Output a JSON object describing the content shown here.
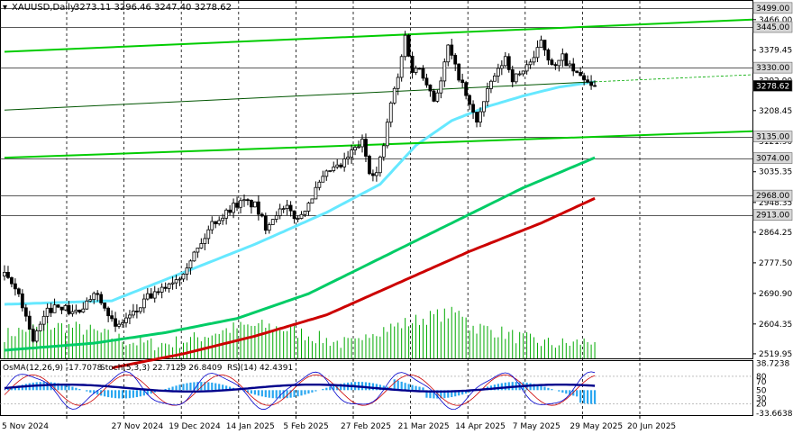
{
  "header": {
    "symbol": "XAUUSD,Daily",
    "ohlc": "3273.11 3296.46 3247.40 3278.62",
    "arrow_icon": "triangle-down-icon"
  },
  "colors": {
    "ema200": "#cc0000",
    "ema144": "#00cc66",
    "ema50": "#66e8ff",
    "channel": "#00cc00",
    "volume": "#00aa00",
    "osma": "#2aa7f0",
    "stoch_main": "#0000cc",
    "stoch_signal": "#cc0000",
    "rsi": "#00008b",
    "price_marker": "#000000"
  },
  "chart_data": {
    "type": "candlestick",
    "price_axis": {
      "ticks": [
        "3466.00",
        "3379.45",
        "3292.90",
        "3208.45",
        "3121.90",
        "3035.35",
        "2948.35",
        "2864.25",
        "2777.50",
        "2690.90",
        "2604.35",
        "2519.95"
      ],
      "ylim": [
        2507,
        3519
      ]
    },
    "level_labels": [
      {
        "value": 3499.0,
        "label": "3499.00"
      },
      {
        "value": 3445.0,
        "label": "3445.00"
      },
      {
        "value": 3330.0,
        "label": "3330.00"
      },
      {
        "value": 3278.62,
        "label": "3278.62",
        "current": true
      },
      {
        "value": 3135.0,
        "label": "3135.00"
      },
      {
        "value": 3074.0,
        "label": "3074.00"
      },
      {
        "value": 2968.0,
        "label": "2968.00"
      },
      {
        "value": 2913.0,
        "label": "2913.00"
      }
    ],
    "date_axis": [
      {
        "label": "5 Nov 2024",
        "index": 0
      },
      {
        "label": "27 Nov 2024",
        "index": 16
      },
      {
        "label": "19 Dec 2024",
        "index": 32
      },
      {
        "label": "14 Jan 2025",
        "index": 48
      },
      {
        "label": "5 Feb 2025",
        "index": 64
      },
      {
        "label": "27 Feb 2025",
        "index": 80
      },
      {
        "label": "21 Mar 2025",
        "index": 96
      },
      {
        "label": "14 Apr 2025",
        "index": 112
      },
      {
        "label": "7 May 2025",
        "index": 128
      },
      {
        "label": "29 May 2025",
        "index": 144
      },
      {
        "label": "20 Jun 2025",
        "index": 160
      }
    ],
    "bars": 166,
    "close_anchors": [
      [
        0,
        2740
      ],
      [
        4,
        2690
      ],
      [
        8,
        2560
      ],
      [
        12,
        2640
      ],
      [
        15,
        2660
      ],
      [
        18,
        2640
      ],
      [
        22,
        2640
      ],
      [
        25,
        2700
      ],
      [
        28,
        2660
      ],
      [
        31,
        2590
      ],
      [
        34,
        2620
      ],
      [
        37,
        2640
      ],
      [
        40,
        2680
      ],
      [
        43,
        2690
      ],
      [
        46,
        2720
      ],
      [
        49,
        2740
      ],
      [
        52,
        2790
      ],
      [
        55,
        2830
      ],
      [
        58,
        2890
      ],
      [
        61,
        2910
      ],
      [
        64,
        2940
      ],
      [
        67,
        2950
      ],
      [
        70,
        2940
      ],
      [
        73,
        2880
      ],
      [
        76,
        2920
      ],
      [
        79,
        2930
      ],
      [
        82,
        2900
      ],
      [
        85,
        2950
      ],
      [
        88,
        3000
      ],
      [
        91,
        3040
      ],
      [
        94,
        3050
      ],
      [
        97,
        3090
      ],
      [
        100,
        3120
      ],
      [
        102,
        3040
      ],
      [
        104,
        3030
      ],
      [
        106,
        3110
      ],
      [
        108,
        3230
      ],
      [
        110,
        3300
      ],
      [
        112,
        3420
      ],
      [
        114,
        3320
      ],
      [
        116,
        3330
      ],
      [
        118,
        3290
      ],
      [
        120,
        3240
      ],
      [
        122,
        3290
      ],
      [
        124,
        3390
      ],
      [
        126,
        3330
      ],
      [
        128,
        3280
      ],
      [
        130,
        3220
      ],
      [
        132,
        3180
      ],
      [
        134,
        3230
      ],
      [
        136,
        3290
      ],
      [
        138,
        3320
      ],
      [
        140,
        3360
      ],
      [
        142,
        3300
      ],
      [
        144,
        3310
      ],
      [
        146,
        3340
      ],
      [
        148,
        3350
      ],
      [
        150,
        3410
      ],
      [
        152,
        3360
      ],
      [
        154,
        3330
      ],
      [
        156,
        3360
      ],
      [
        158,
        3330
      ],
      [
        160,
        3310
      ],
      [
        162,
        3300
      ],
      [
        164,
        3270
      ],
      [
        165,
        3278.62
      ]
    ],
    "series": [
      {
        "name": "EMA50",
        "values": [
          [
            0,
            2660
          ],
          [
            30,
            2670
          ],
          [
            50,
            2750
          ],
          [
            70,
            2830
          ],
          [
            90,
            2920
          ],
          [
            105,
            3000
          ],
          [
            115,
            3110
          ],
          [
            125,
            3180
          ],
          [
            135,
            3220
          ],
          [
            145,
            3250
          ],
          [
            155,
            3275
          ],
          [
            165,
            3290
          ]
        ]
      },
      {
        "name": "EMA144",
        "values": [
          [
            0,
            2530
          ],
          [
            25,
            2550
          ],
          [
            45,
            2580
          ],
          [
            65,
            2620
          ],
          [
            85,
            2690
          ],
          [
            105,
            2790
          ],
          [
            125,
            2890
          ],
          [
            145,
            2990
          ],
          [
            165,
            3075
          ]
        ]
      },
      {
        "name": "EMA200",
        "values": [
          [
            30,
            2480
          ],
          [
            50,
            2520
          ],
          [
            70,
            2570
          ],
          [
            90,
            2630
          ],
          [
            110,
            2720
          ],
          [
            130,
            2810
          ],
          [
            150,
            2890
          ],
          [
            165,
            2960
          ]
        ]
      }
    ],
    "channel_lines": [
      {
        "from": [
          0,
          3375
        ],
        "to": [
          210,
          3466
        ],
        "style": "solid"
      },
      {
        "from": [
          0,
          3075
        ],
        "to": [
          210,
          3150
        ],
        "style": "solid"
      },
      {
        "from": [
          0,
          3210
        ],
        "to": [
          165,
          3290
        ],
        "style": "solid-thin"
      },
      {
        "from": [
          165,
          3290
        ],
        "to": [
          210,
          3310
        ],
        "style": "dashed"
      }
    ],
    "volume_max": 75,
    "oscillator": {
      "labels": [
        "OsMA(12,26,9) -17.7078",
        "Stoch(5,3,3) 22.7129 26.8409",
        "RSI(14) 42.4391"
      ],
      "axis_ticks": [
        {
          "label": "38.7238",
          "value": 38.72
        },
        {
          "label": "80",
          "value": 20
        },
        {
          "label": "70",
          "value": 12
        },
        {
          "label": "50",
          "value": 0
        },
        {
          "label": "30",
          "value": -12
        },
        {
          "label": "20",
          "value": -20
        },
        {
          "label": "-33.6638",
          "value": -33.66
        }
      ],
      "ylim": [
        -36,
        42
      ]
    }
  }
}
